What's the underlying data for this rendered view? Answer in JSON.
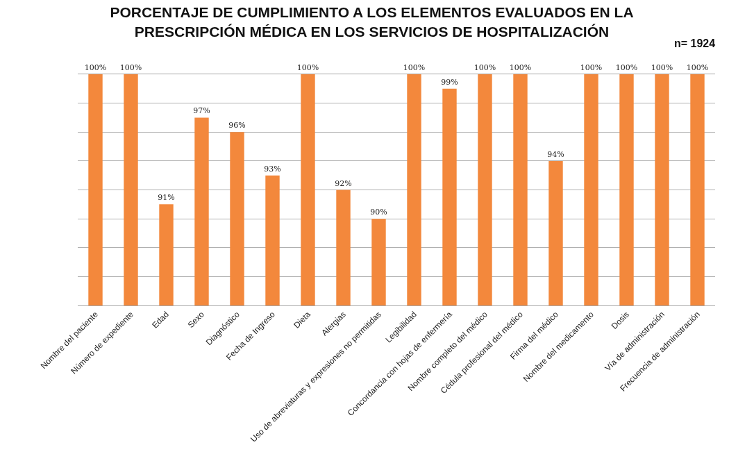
{
  "chart_data": {
    "type": "bar",
    "title": "PORCENTAJE DE CUMPLIMIENTO A LOS ELEMENTOS EVALUADOS EN LA PRESCRIPCIÓN MÉDICA EN LOS SERVICIOS DE HOSPITALIZACIÓN",
    "annotations": [
      "n= 1924"
    ],
    "categories": [
      "Nombre del paciente",
      "Número de expediente",
      "Edad",
      "Sexo",
      "Diagnóstico",
      "Fecha de Ingreso",
      "Dieta",
      "Alergias",
      "Uso de abreviaturas y expresiones no permitidas",
      "Legibilidad",
      "Concordancia con hojas de enfermería",
      "Nombre completo del médico",
      "Cédula profesional del médico",
      "Firma del médico",
      "Nombre del medicamento",
      "Dosis",
      "Vía de administración",
      "Frecuencia de administración"
    ],
    "values": [
      100,
      100,
      91,
      97,
      96,
      93,
      100,
      92,
      90,
      100,
      99,
      100,
      100,
      94,
      100,
      100,
      100,
      100
    ],
    "value_labels": [
      "100%",
      "100%",
      "91%",
      "97%",
      "96%",
      "93%",
      "100%",
      "92%",
      "90%",
      "100%",
      "99%",
      "100%",
      "100%",
      "94%",
      "100%",
      "100%",
      "100%",
      "100%"
    ],
    "color": "#f3883c",
    "ylim": [
      84,
      100
    ],
    "yticks": [
      {
        "value": 84,
        "label": null
      },
      {
        "value": 86,
        "label": null
      },
      {
        "value": 88,
        "label": null
      },
      {
        "value": 90,
        "label": null
      },
      {
        "value": 92,
        "label": null
      },
      {
        "value": 94,
        "label": null
      },
      {
        "value": 96,
        "label": null
      },
      {
        "value": 98,
        "label": null
      },
      {
        "value": 100,
        "label": null
      }
    ],
    "grid": "y",
    "tick_labels": "x"
  }
}
